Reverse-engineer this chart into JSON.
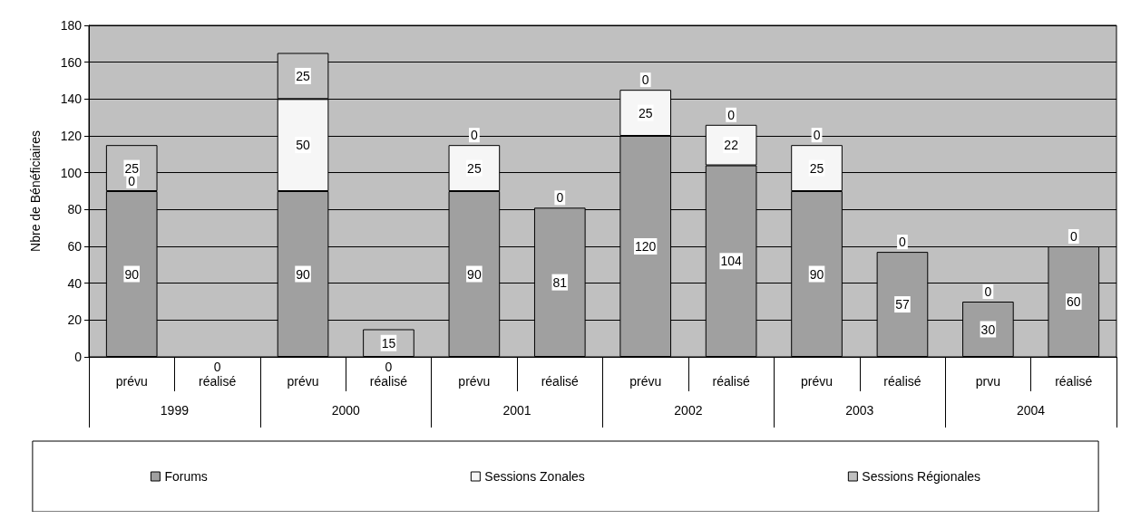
{
  "chart_data": {
    "type": "bar",
    "stacked": true,
    "ylabel": "Nbre de Bénéficiaires",
    "categories": [
      "prévu",
      "réalisé",
      "prévu",
      "réalisé",
      "prévu",
      "réalisé",
      "prévu",
      "réalisé",
      "prévu",
      "réalisé",
      "prvu",
      "réalisé"
    ],
    "annotations": [
      "1999",
      "2000",
      "2001",
      "2002",
      "2003",
      "2004"
    ],
    "series": [
      {
        "name": "Forums",
        "color": "#a0a0a0",
        "values": [
          90,
          0,
          90,
          0,
          90,
          81,
          120,
          104,
          90,
          57,
          30,
          60
        ]
      },
      {
        "name": "Sessions Zonales",
        "color": "#f6f6f6",
        "values": [
          0,
          null,
          50,
          null,
          25,
          0,
          25,
          22,
          25,
          0,
          0,
          0
        ]
      },
      {
        "name": "Sessions Régionales",
        "color": "#c0c0c0",
        "values": [
          25,
          null,
          25,
          15,
          0,
          null,
          0,
          0,
          0,
          null,
          null,
          null
        ]
      }
    ],
    "ylim": [
      0,
      180
    ],
    "yticks": [
      0,
      20,
      40,
      60,
      80,
      100,
      120,
      140,
      160,
      180
    ],
    "grid": "y",
    "legend": "bottom",
    "data_labels": true
  }
}
